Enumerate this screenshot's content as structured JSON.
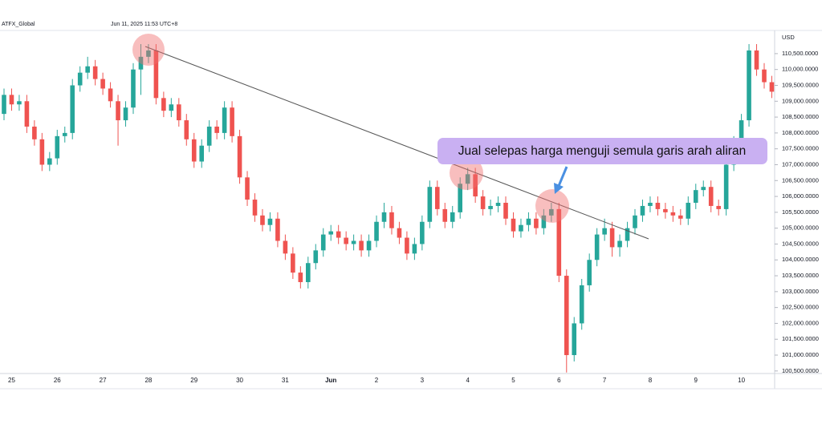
{
  "chart_data": {
    "type": "candlestick",
    "symbol": "ATFX_Global",
    "timestamp": "Jun 11, 2025 11:53 UTC+8",
    "y_axis_label": "USD",
    "annotation": "Jual selepas harga menguji semula garis arah aliran",
    "up_color": "#26a69a",
    "down_color": "#ef5350",
    "grid": false,
    "categories": [
      null,
      "25",
      null,
      null,
      null,
      null,
      null,
      "26",
      null,
      null,
      null,
      null,
      null,
      "27",
      null,
      null,
      null,
      null,
      null,
      "28",
      null,
      null,
      null,
      null,
      null,
      "29",
      null,
      null,
      null,
      null,
      null,
      "30",
      null,
      null,
      null,
      null,
      null,
      "31",
      null,
      null,
      null,
      null,
      null,
      "Jun",
      null,
      null,
      null,
      null,
      null,
      "2",
      null,
      null,
      null,
      null,
      null,
      "3",
      null,
      null,
      null,
      null,
      null,
      "4",
      null,
      null,
      null,
      null,
      null,
      "5",
      null,
      null,
      null,
      null,
      null,
      "6",
      null,
      null,
      null,
      null,
      null,
      "7",
      null,
      null,
      null,
      null,
      null,
      "8",
      null,
      null,
      null,
      null,
      null,
      "9",
      null,
      null,
      null,
      null,
      null,
      "10",
      null,
      null,
      null,
      null
    ],
    "open": [
      108600,
      109200,
      108900,
      109000,
      108200,
      107800,
      107000,
      107200,
      107900,
      108000,
      109500,
      109900,
      110100,
      109700,
      109400,
      109000,
      108400,
      108800,
      110000,
      110400,
      110600,
      109100,
      108700,
      108900,
      108400,
      107800,
      107100,
      107600,
      108200,
      108000,
      108800,
      107900,
      106600,
      105900,
      105400,
      105100,
      105300,
      104600,
      104200,
      103600,
      103300,
      103900,
      104300,
      104800,
      104900,
      104700,
      104500,
      104600,
      104300,
      104600,
      105200,
      105500,
      105000,
      104700,
      104200,
      104500,
      105200,
      106300,
      105600,
      105200,
      105500,
      106400,
      106700,
      106000,
      105600,
      105700,
      105800,
      105300,
      104900,
      105100,
      105300,
      105000,
      105400,
      105600,
      103500,
      101000,
      102000,
      103200,
      104000,
      104800,
      105000,
      104400,
      104600,
      105000,
      105400,
      105700,
      105800,
      105600,
      105500,
      105400,
      105300,
      105800,
      106200,
      106300,
      105700,
      105600,
      107000,
      107700,
      108400,
      110600,
      110000,
      109600
    ],
    "high": [
      109400,
      109400,
      109200,
      109200,
      108400,
      108000,
      107400,
      108100,
      108200,
      109700,
      110100,
      110400,
      110300,
      109900,
      109600,
      109200,
      109000,
      110200,
      110800,
      110800,
      110800,
      109300,
      109100,
      109100,
      108600,
      108000,
      107800,
      108400,
      108400,
      109000,
      109000,
      108100,
      106800,
      106100,
      105600,
      105500,
      105500,
      104800,
      104400,
      103800,
      104100,
      104500,
      105000,
      105100,
      105100,
      104900,
      104800,
      104800,
      104800,
      105400,
      105800,
      105700,
      105200,
      104900,
      104700,
      105400,
      106500,
      106500,
      105800,
      105700,
      106600,
      106900,
      106900,
      106200,
      105900,
      106000,
      106000,
      105500,
      105300,
      105500,
      105500,
      105600,
      105800,
      105800,
      103700,
      102200,
      103400,
      104200,
      105000,
      105300,
      105200,
      104800,
      105200,
      105600,
      105900,
      106000,
      106000,
      105800,
      105700,
      105600,
      106000,
      106400,
      106500,
      106500,
      105900,
      107200,
      107900,
      108600,
      110800,
      110800,
      110200,
      109800
    ],
    "low": [
      108400,
      108700,
      108700,
      108000,
      107600,
      106800,
      106800,
      107000,
      107700,
      107800,
      109300,
      109700,
      109500,
      109200,
      108800,
      107600,
      108200,
      108600,
      109200,
      110200,
      108900,
      108500,
      108500,
      108200,
      107600,
      106900,
      106900,
      107400,
      107800,
      107800,
      107700,
      106400,
      105700,
      105200,
      104900,
      104900,
      104400,
      104000,
      103400,
      103100,
      103100,
      103700,
      104100,
      104600,
      104500,
      104300,
      104300,
      104100,
      104100,
      104400,
      105000,
      104800,
      104500,
      104000,
      104000,
      104300,
      105000,
      105400,
      105000,
      105000,
      105300,
      106200,
      105800,
      105400,
      105400,
      105500,
      105100,
      104700,
      104700,
      104900,
      104800,
      104800,
      105200,
      103300,
      100450,
      100800,
      101800,
      103000,
      103800,
      104600,
      104100,
      104100,
      104400,
      104800,
      105200,
      105500,
      105400,
      105300,
      105200,
      105100,
      105100,
      105600,
      106000,
      105500,
      105400,
      105400,
      106800,
      107500,
      108200,
      109800,
      109400,
      109100
    ],
    "close": [
      109200,
      108900,
      109000,
      108200,
      107800,
      107000,
      107200,
      107900,
      108000,
      109500,
      109900,
      110100,
      109700,
      109400,
      109000,
      108400,
      108800,
      110000,
      110400,
      110600,
      109100,
      108700,
      108900,
      108400,
      107800,
      107100,
      107600,
      108200,
      108000,
      108800,
      107900,
      106600,
      105900,
      105400,
      105100,
      105300,
      104600,
      104200,
      103600,
      103300,
      103900,
      104300,
      104800,
      104900,
      104700,
      104500,
      104600,
      104300,
      104600,
      105200,
      105500,
      105000,
      104700,
      104200,
      104500,
      105200,
      106300,
      105600,
      105200,
      105500,
      106400,
      106700,
      106000,
      105600,
      105700,
      105800,
      105300,
      104900,
      105100,
      105300,
      105000,
      105400,
      105600,
      103500,
      101000,
      102000,
      103200,
      104000,
      104800,
      105000,
      104400,
      104600,
      105000,
      105400,
      105700,
      105800,
      105600,
      105500,
      105400,
      105300,
      105800,
      106200,
      106300,
      105700,
      105600,
      107000,
      107700,
      108400,
      110600,
      110000,
      109600,
      109300
    ],
    "ylim": [
      100420,
      111230
    ],
    "yticks": [
      {
        "value": 100500,
        "label": "100,500.0000"
      },
      {
        "value": 101000,
        "label": "101,000.0000"
      },
      {
        "value": 101500,
        "label": "101,500.0000"
      },
      {
        "value": 102000,
        "label": "102,000.0000"
      },
      {
        "value": 102500,
        "label": "102,500.0000"
      },
      {
        "value": 103000,
        "label": "103,000.0000"
      },
      {
        "value": 103500,
        "label": "103,500.0000"
      },
      {
        "value": 104000,
        "label": "104,000.0000"
      },
      {
        "value": 104500,
        "label": "104,500.0000"
      },
      {
        "value": 105000,
        "label": "105,000.0000"
      },
      {
        "value": 105500,
        "label": "105,500.0000"
      },
      {
        "value": 106000,
        "label": "106,000.0000"
      },
      {
        "value": 106500,
        "label": "106,500.0000"
      },
      {
        "value": 107000,
        "label": "107,000.0000"
      },
      {
        "value": 107500,
        "label": "107,500.0000"
      },
      {
        "value": 108000,
        "label": "108,000.0000"
      },
      {
        "value": 108500,
        "label": "108,500.0000"
      },
      {
        "value": 109000,
        "label": "109,000.0000"
      },
      {
        "value": 109500,
        "label": "109,500.0000"
      },
      {
        "value": 110000,
        "label": "110,000.0000"
      },
      {
        "value": 110500,
        "label": "110,500.0000"
      }
    ]
  }
}
